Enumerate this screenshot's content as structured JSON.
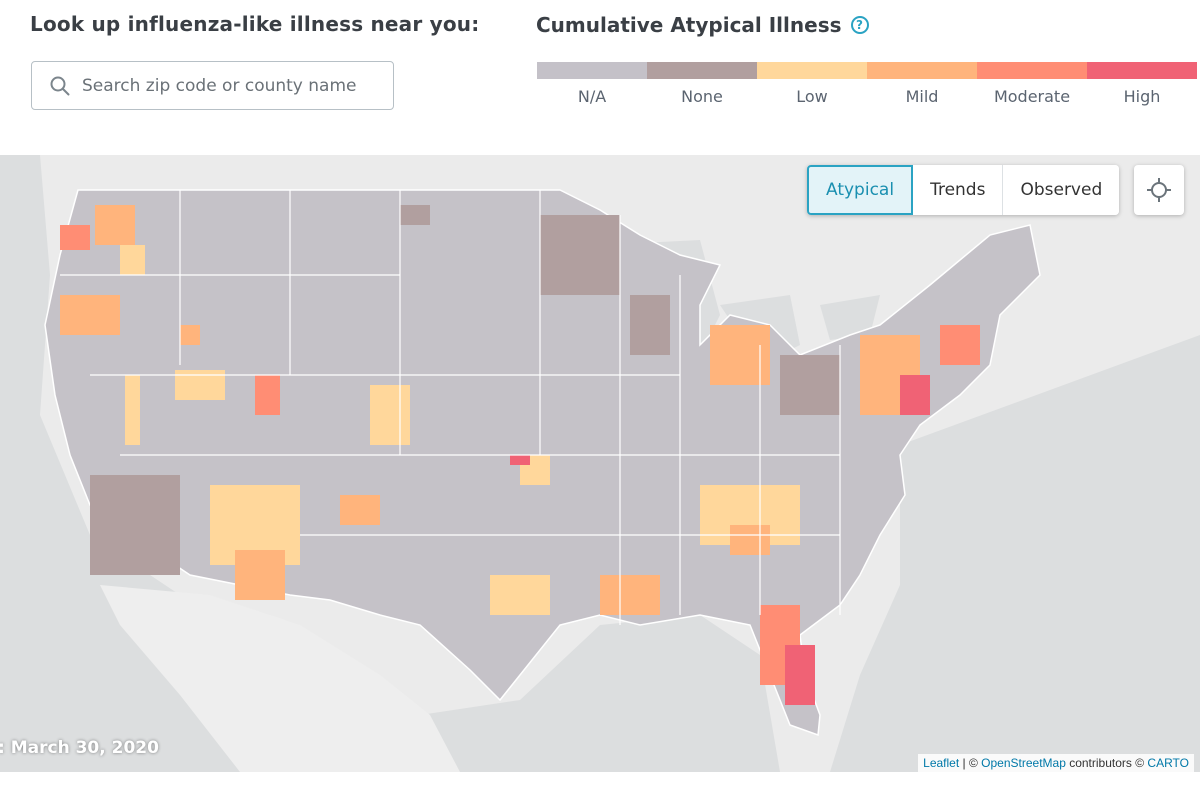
{
  "lookup": {
    "title": "Look up influenza-like illness near you:",
    "search_placeholder": "Search zip code or county name",
    "search_value": ""
  },
  "legend": {
    "title": "Cumulative Atypical Illness",
    "help_symbol": "?",
    "items": [
      {
        "label": "N/A",
        "color": "#c4c1c8"
      },
      {
        "label": "None",
        "color": "#b19f9f"
      },
      {
        "label": "Low",
        "color": "#ffd79b"
      },
      {
        "label": "Mild",
        "color": "#ffb47c"
      },
      {
        "label": "Moderate",
        "color": "#ff8d74"
      },
      {
        "label": "High",
        "color": "#f06275"
      }
    ]
  },
  "map": {
    "modes": [
      "Atypical",
      "Trends",
      "Observed"
    ],
    "active_mode": "Atypical",
    "locate_icon": "crosshair-icon",
    "date_label": ": March 30, 2020",
    "attribution": {
      "leaflet": "Leaflet",
      "sep": " | © ",
      "osm": "OpenStreetMap",
      "contrib": " contributors © ",
      "carto": "CARTO"
    }
  }
}
